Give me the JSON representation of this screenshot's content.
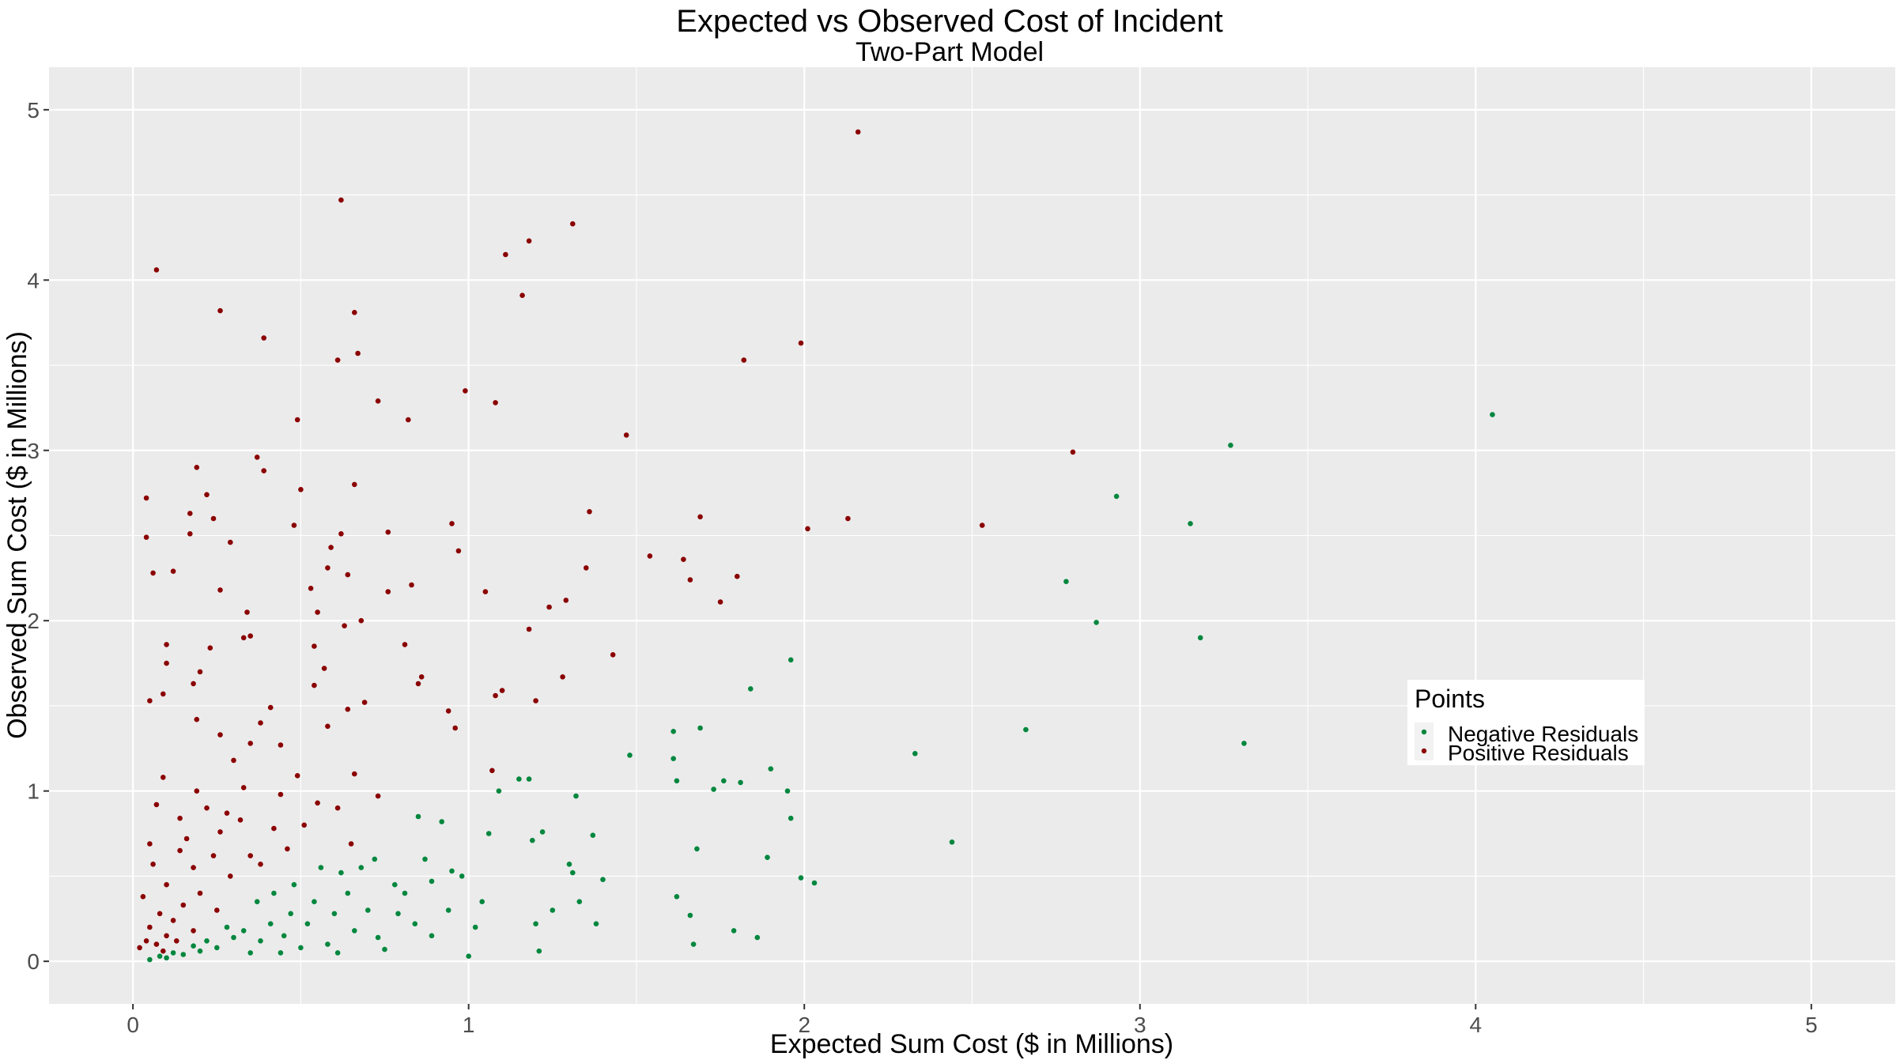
{
  "chart_data": {
    "type": "scatter",
    "title": "Expected vs Observed Cost of Incident",
    "subtitle": "Two-Part Model",
    "xlabel": "Expected Sum Cost ($ in Millions)",
    "ylabel": "Observed Sum Cost ($ in Millions)",
    "xlim": [
      -0.25,
      5.25
    ],
    "ylim": [
      -0.25,
      5.25
    ],
    "x_ticks": [
      "0",
      "1",
      "2",
      "3",
      "4",
      "5"
    ],
    "y_ticks": [
      "0",
      "1",
      "2",
      "3",
      "4",
      "5"
    ],
    "grid": true,
    "legend": {
      "title": "Points",
      "placement": "right-middle",
      "entries": [
        "Negative Residuals",
        "Positive Residuals"
      ]
    },
    "colors": {
      "panel": "#ebebeb",
      "grid": "#ffffff",
      "negative": "#00873e",
      "positive": "#8b0000"
    },
    "series": [
      {
        "name": "Negative Residuals",
        "color": "#00873e",
        "points": [
          [
            4.05,
            3.21
          ],
          [
            3.27,
            3.03
          ],
          [
            3.15,
            2.57
          ],
          [
            2.93,
            2.73
          ],
          [
            2.78,
            2.23
          ],
          [
            2.87,
            1.99
          ],
          [
            3.18,
            1.9
          ],
          [
            3.31,
            1.28
          ],
          [
            2.66,
            1.36
          ],
          [
            2.33,
            1.22
          ],
          [
            2.44,
            0.7
          ],
          [
            1.96,
            1.77
          ],
          [
            1.84,
            1.6
          ],
          [
            1.61,
            1.35
          ],
          [
            1.69,
            1.37
          ],
          [
            1.48,
            1.21
          ],
          [
            1.61,
            1.19
          ],
          [
            1.62,
            1.06
          ],
          [
            1.73,
            1.01
          ],
          [
            1.76,
            1.06
          ],
          [
            1.81,
            1.05
          ],
          [
            1.9,
            1.13
          ],
          [
            1.95,
            1.0
          ],
          [
            1.96,
            0.84
          ],
          [
            1.89,
            0.61
          ],
          [
            1.68,
            0.66
          ],
          [
            1.99,
            0.49
          ],
          [
            2.03,
            0.46
          ],
          [
            1.62,
            0.38
          ],
          [
            1.66,
            0.27
          ],
          [
            1.79,
            0.18
          ],
          [
            1.67,
            0.1
          ],
          [
            1.86,
            0.14
          ],
          [
            1.32,
            0.97
          ],
          [
            1.18,
            1.07
          ],
          [
            1.15,
            1.07
          ],
          [
            1.09,
            1.0
          ],
          [
            1.06,
            0.75
          ],
          [
            1.19,
            0.71
          ],
          [
            1.22,
            0.76
          ],
          [
            1.37,
            0.74
          ],
          [
            1.3,
            0.57
          ],
          [
            1.31,
            0.52
          ],
          [
            1.4,
            0.48
          ],
          [
            1.25,
            0.3
          ],
          [
            1.33,
            0.35
          ],
          [
            1.38,
            0.22
          ],
          [
            1.2,
            0.22
          ],
          [
            1.21,
            0.06
          ],
          [
            1.04,
            0.35
          ],
          [
            1.0,
            0.03
          ],
          [
            0.92,
            0.82
          ],
          [
            0.85,
            0.85
          ],
          [
            0.87,
            0.6
          ],
          [
            0.95,
            0.53
          ],
          [
            0.98,
            0.5
          ],
          [
            0.94,
            0.3
          ],
          [
            0.89,
            0.15
          ],
          [
            1.02,
            0.2
          ],
          [
            0.56,
            0.55
          ],
          [
            0.62,
            0.52
          ],
          [
            0.48,
            0.45
          ],
          [
            0.42,
            0.4
          ],
          [
            0.37,
            0.35
          ],
          [
            0.72,
            0.6
          ],
          [
            0.78,
            0.45
          ],
          [
            0.7,
            0.3
          ],
          [
            0.66,
            0.18
          ],
          [
            0.75,
            0.07
          ],
          [
            0.81,
            0.4
          ],
          [
            0.6,
            0.28
          ],
          [
            0.52,
            0.22
          ],
          [
            0.45,
            0.15
          ],
          [
            0.38,
            0.12
          ],
          [
            0.3,
            0.14
          ],
          [
            0.25,
            0.08
          ],
          [
            0.2,
            0.06
          ],
          [
            0.15,
            0.04
          ],
          [
            0.1,
            0.02
          ],
          [
            0.05,
            0.01
          ],
          [
            0.35,
            0.05
          ],
          [
            0.58,
            0.1
          ],
          [
            0.64,
            0.4
          ],
          [
            0.84,
            0.22
          ],
          [
            0.89,
            0.47
          ],
          [
            0.54,
            0.35
          ],
          [
            0.47,
            0.28
          ],
          [
            0.41,
            0.22
          ],
          [
            0.33,
            0.18
          ],
          [
            0.28,
            0.2
          ],
          [
            0.22,
            0.12
          ],
          [
            0.18,
            0.09
          ],
          [
            0.12,
            0.05
          ],
          [
            0.08,
            0.03
          ],
          [
            0.68,
            0.55
          ],
          [
            0.73,
            0.14
          ],
          [
            0.79,
            0.28
          ],
          [
            0.61,
            0.05
          ],
          [
            0.5,
            0.08
          ],
          [
            0.44,
            0.05
          ]
        ]
      },
      {
        "name": "Positive Residuals",
        "color": "#8b0000",
        "points": [
          [
            2.16,
            4.87
          ],
          [
            0.62,
            4.47
          ],
          [
            1.31,
            4.33
          ],
          [
            1.18,
            4.23
          ],
          [
            1.11,
            4.15
          ],
          [
            0.07,
            4.06
          ],
          [
            1.16,
            3.91
          ],
          [
            0.26,
            3.82
          ],
          [
            0.66,
            3.81
          ],
          [
            0.39,
            3.66
          ],
          [
            1.99,
            3.63
          ],
          [
            0.67,
            3.57
          ],
          [
            1.82,
            3.53
          ],
          [
            0.61,
            3.53
          ],
          [
            0.99,
            3.35
          ],
          [
            0.73,
            3.29
          ],
          [
            1.08,
            3.28
          ],
          [
            0.82,
            3.18
          ],
          [
            0.49,
            3.18
          ],
          [
            1.47,
            3.09
          ],
          [
            2.8,
            2.99
          ],
          [
            0.37,
            2.96
          ],
          [
            0.19,
            2.9
          ],
          [
            0.39,
            2.88
          ],
          [
            0.66,
            2.8
          ],
          [
            0.5,
            2.77
          ],
          [
            0.22,
            2.74
          ],
          [
            0.04,
            2.72
          ],
          [
            1.36,
            2.64
          ],
          [
            0.17,
            2.63
          ],
          [
            1.69,
            2.61
          ],
          [
            2.13,
            2.6
          ],
          [
            0.24,
            2.6
          ],
          [
            0.95,
            2.57
          ],
          [
            2.53,
            2.56
          ],
          [
            0.48,
            2.56
          ],
          [
            2.01,
            2.54
          ],
          [
            0.76,
            2.52
          ],
          [
            0.17,
            2.51
          ],
          [
            0.62,
            2.51
          ],
          [
            0.04,
            2.49
          ],
          [
            0.29,
            2.46
          ],
          [
            0.59,
            2.43
          ],
          [
            0.97,
            2.41
          ],
          [
            1.54,
            2.38
          ],
          [
            1.64,
            2.36
          ],
          [
            0.58,
            2.31
          ],
          [
            1.35,
            2.31
          ],
          [
            0.12,
            2.29
          ],
          [
            0.06,
            2.28
          ],
          [
            0.64,
            2.27
          ],
          [
            1.8,
            2.26
          ],
          [
            1.66,
            2.24
          ],
          [
            0.83,
            2.21
          ],
          [
            0.53,
            2.19
          ],
          [
            0.26,
            2.18
          ],
          [
            0.76,
            2.17
          ],
          [
            1.05,
            2.17
          ],
          [
            1.29,
            2.12
          ],
          [
            1.75,
            2.11
          ],
          [
            1.24,
            2.08
          ],
          [
            0.55,
            2.05
          ],
          [
            0.34,
            2.05
          ],
          [
            0.63,
            1.97
          ],
          [
            0.68,
            2.0
          ],
          [
            1.18,
            1.95
          ],
          [
            0.33,
            1.9
          ],
          [
            0.35,
            1.91
          ],
          [
            0.81,
            1.86
          ],
          [
            0.1,
            1.86
          ],
          [
            0.54,
            1.85
          ],
          [
            0.23,
            1.84
          ],
          [
            1.43,
            1.8
          ],
          [
            0.1,
            1.75
          ],
          [
            0.57,
            1.72
          ],
          [
            0.2,
            1.7
          ],
          [
            0.86,
            1.67
          ],
          [
            1.28,
            1.67
          ],
          [
            0.18,
            1.63
          ],
          [
            0.85,
            1.63
          ],
          [
            0.54,
            1.62
          ],
          [
            0.09,
            1.57
          ],
          [
            1.1,
            1.59
          ],
          [
            1.08,
            1.56
          ],
          [
            1.2,
            1.53
          ],
          [
            0.05,
            1.53
          ],
          [
            0.69,
            1.52
          ],
          [
            0.41,
            1.49
          ],
          [
            0.64,
            1.48
          ],
          [
            0.94,
            1.47
          ],
          [
            0.19,
            1.42
          ],
          [
            0.38,
            1.4
          ],
          [
            0.96,
            1.37
          ],
          [
            0.26,
            1.33
          ],
          [
            0.58,
            1.38
          ],
          [
            0.35,
            1.28
          ],
          [
            0.44,
            1.27
          ],
          [
            0.3,
            1.18
          ],
          [
            1.07,
            1.12
          ],
          [
            0.49,
            1.09
          ],
          [
            0.09,
            1.08
          ],
          [
            0.66,
            1.1
          ],
          [
            0.19,
            1.0
          ],
          [
            0.73,
            0.97
          ],
          [
            0.22,
            0.9
          ],
          [
            0.07,
            0.92
          ],
          [
            0.55,
            0.93
          ],
          [
            0.14,
            0.84
          ],
          [
            0.32,
            0.83
          ],
          [
            0.05,
            0.69
          ],
          [
            0.26,
            0.76
          ],
          [
            0.42,
            0.78
          ],
          [
            0.65,
            0.69
          ],
          [
            0.14,
            0.65
          ],
          [
            0.35,
            0.62
          ],
          [
            0.06,
            0.57
          ],
          [
            0.18,
            0.55
          ],
          [
            0.29,
            0.5
          ],
          [
            0.1,
            0.45
          ],
          [
            0.2,
            0.4
          ],
          [
            0.03,
            0.38
          ],
          [
            0.15,
            0.33
          ],
          [
            0.25,
            0.3
          ],
          [
            0.08,
            0.28
          ],
          [
            0.12,
            0.24
          ],
          [
            0.05,
            0.2
          ],
          [
            0.18,
            0.18
          ],
          [
            0.1,
            0.15
          ],
          [
            0.04,
            0.12
          ],
          [
            0.07,
            0.1
          ],
          [
            0.02,
            0.08
          ],
          [
            0.13,
            0.12
          ],
          [
            0.09,
            0.06
          ],
          [
            0.24,
            0.62
          ],
          [
            0.38,
            0.57
          ],
          [
            0.46,
            0.66
          ],
          [
            0.28,
            0.87
          ],
          [
            0.51,
            0.8
          ],
          [
            0.61,
            0.9
          ],
          [
            0.16,
            0.72
          ],
          [
            0.33,
            1.02
          ],
          [
            0.44,
            0.98
          ]
        ]
      }
    ]
  }
}
